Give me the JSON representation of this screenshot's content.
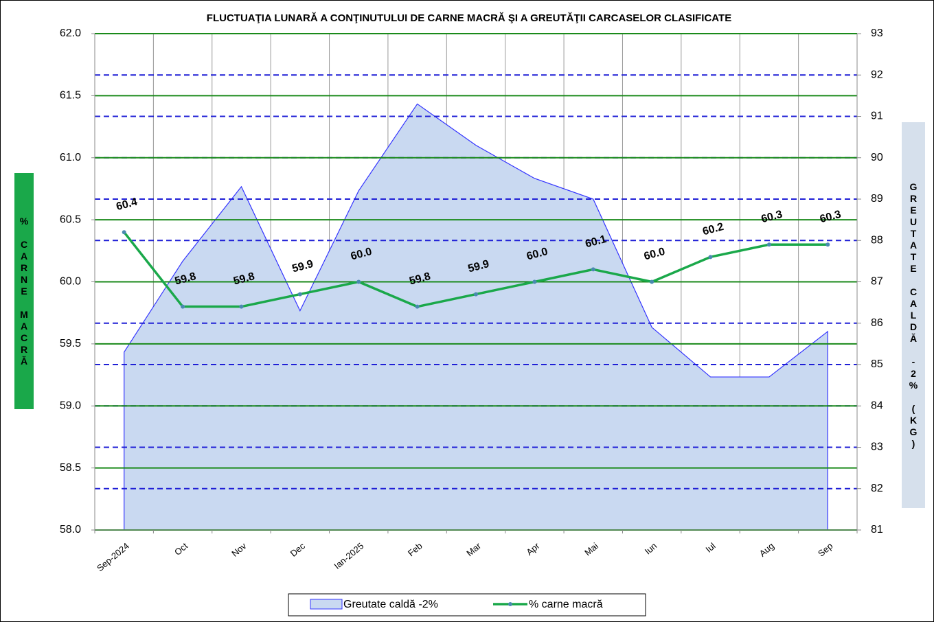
{
  "chart_data": {
    "type": "area-line",
    "title": "FLUCTUAŢIA  LUNARĂ   A CONŢINUTULUI  DE CARNE  MACRĂ  ŞI A GREUTĂŢII  CARCASELOR  CLASIFICATE",
    "y_label": "% CARNE MACRĂ",
    "y2_label": "GREUTATE CALDĂ -2% (KG)",
    "categories": [
      "Sep-2024",
      "Oct",
      "Nov",
      "Dec",
      "Ian-2025",
      "Feb",
      "Mar",
      "Apr",
      "Mai",
      "Iun",
      "Iul",
      "Aug",
      "Sep"
    ],
    "series": [
      {
        "name": "Greutate caldă -2%",
        "type": "area",
        "axis": "y2",
        "color": "#c9d9f1",
        "line_color": "#3333ff",
        "values": [
          85.3,
          87.5,
          89.3,
          86.3,
          89.2,
          91.3,
          90.3,
          89.5,
          89.0,
          85.9,
          84.7,
          84.7,
          85.8
        ]
      },
      {
        "name": "% carne macră",
        "type": "line",
        "axis": "y",
        "color": "#1aa84a",
        "values": [
          60.4,
          59.8,
          59.8,
          59.9,
          60.0,
          59.8,
          59.9,
          60.0,
          60.1,
          60.0,
          60.2,
          60.3,
          60.3
        ],
        "value_labels": [
          "60.4",
          "59.8",
          "59.8",
          "59.9",
          "60.0",
          "59.8",
          "59.9",
          "60.0",
          "60.1",
          "60.0",
          "60.2",
          "60.3",
          "60.3"
        ]
      }
    ],
    "ylim": [
      58,
      62
    ],
    "yticks": [
      {
        "value": 58,
        "label": "58.0"
      },
      {
        "value": 58.5,
        "label": "58.5"
      },
      {
        "value": 59,
        "label": "59.0"
      },
      {
        "value": 59.5,
        "label": "59.5"
      },
      {
        "value": 60,
        "label": "60.0"
      },
      {
        "value": 60.5,
        "label": "60.5"
      },
      {
        "value": 61,
        "label": "61.0"
      },
      {
        "value": 61.5,
        "label": "61.5"
      },
      {
        "value": 62,
        "label": "62.0"
      }
    ],
    "y2lim": [
      81,
      93
    ],
    "y2ticks": [
      81,
      82,
      83,
      84,
      85,
      86,
      87,
      88,
      89,
      90,
      91,
      92,
      93
    ],
    "grid": true
  }
}
